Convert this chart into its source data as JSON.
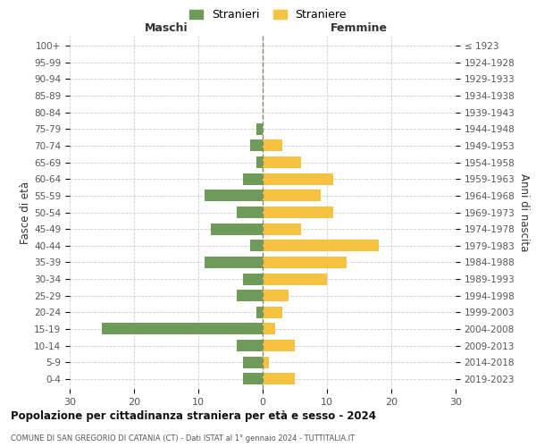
{
  "age_groups": [
    "0-4",
    "5-9",
    "10-14",
    "15-19",
    "20-24",
    "25-29",
    "30-34",
    "35-39",
    "40-44",
    "45-49",
    "50-54",
    "55-59",
    "60-64",
    "65-69",
    "70-74",
    "75-79",
    "80-84",
    "85-89",
    "90-94",
    "95-99",
    "100+"
  ],
  "birth_years": [
    "2019-2023",
    "2014-2018",
    "2009-2013",
    "2004-2008",
    "1999-2003",
    "1994-1998",
    "1989-1993",
    "1984-1988",
    "1979-1983",
    "1974-1978",
    "1969-1973",
    "1964-1968",
    "1959-1963",
    "1954-1958",
    "1949-1953",
    "1944-1948",
    "1939-1943",
    "1934-1938",
    "1929-1933",
    "1924-1928",
    "≤ 1923"
  ],
  "males": [
    3,
    3,
    4,
    25,
    1,
    4,
    3,
    9,
    2,
    8,
    4,
    9,
    3,
    1,
    2,
    1,
    0,
    0,
    0,
    0,
    0
  ],
  "females": [
    5,
    1,
    5,
    2,
    3,
    4,
    10,
    13,
    18,
    6,
    11,
    9,
    11,
    6,
    3,
    0,
    0,
    0,
    0,
    0,
    0
  ],
  "male_color": "#6e9b5a",
  "female_color": "#f5c242",
  "male_label": "Stranieri",
  "female_label": "Straniere",
  "title": "Popolazione per cittadinanza straniera per età e sesso - 2024",
  "subtitle": "COMUNE DI SAN GREGORIO DI CATANIA (CT) - Dati ISTAT al 1° gennaio 2024 - TUTTITALIA.IT",
  "xlabel_left": "Maschi",
  "xlabel_right": "Femmine",
  "ylabel_left": "Fasce di età",
  "ylabel_right": "Anni di nascita",
  "xlim": 30,
  "background_color": "#ffffff",
  "grid_color": "#cccccc"
}
